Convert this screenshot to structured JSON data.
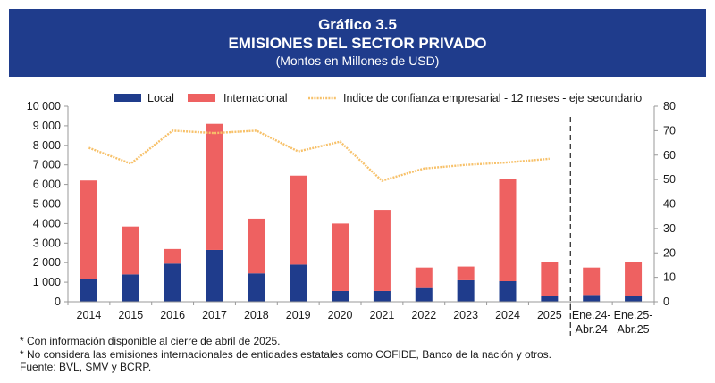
{
  "header": {
    "line1": "Gráfico 3.5",
    "line2": "EMISIONES DEL SECTOR PRIVADO",
    "line3": "(Montos en Millones de USD)"
  },
  "colors": {
    "header_bg": "#1f3c8c",
    "local": "#1f3c8c",
    "internacional": "#ee6161",
    "index": "#f7c16a",
    "divider": "#333333"
  },
  "chart_data": {
    "type": "bar",
    "stacked": true,
    "categories": [
      "2014",
      "2015",
      "2016",
      "2017",
      "2018",
      "2019",
      "2020",
      "2021",
      "2022",
      "2023",
      "2024",
      "2025",
      "Ene.24-\nAbr.24",
      "Ene.25-\nAbr.25"
    ],
    "series": [
      {
        "name": "Local",
        "values": [
          1150,
          1400,
          1950,
          2650,
          1450,
          1900,
          550,
          550,
          700,
          1100,
          1050,
          300,
          350,
          300
        ]
      },
      {
        "name": "Internacional",
        "values": [
          5050,
          2450,
          750,
          6450,
          2800,
          4550,
          3450,
          4150,
          1050,
          700,
          5250,
          1750,
          1400,
          1750
        ]
      }
    ],
    "secondary_line": {
      "name": "Indice de confianza empresarial - 12 meses - eje secundario",
      "x": [
        "2014",
        "2015",
        "2016",
        "2017",
        "2018",
        "2019",
        "2020",
        "2021",
        "2022",
        "2023",
        "2024",
        "2025"
      ],
      "values": [
        63,
        56.5,
        70,
        69,
        70,
        61.5,
        65.5,
        49.5,
        54.5,
        56,
        57,
        58.5
      ]
    },
    "ylim": [
      0,
      10000
    ],
    "yticks": [
      "0",
      "1 000",
      "2 000",
      "3 000",
      "4 000",
      "5 000",
      "6 000",
      "7 000",
      "8 000",
      "9 000",
      "10 000"
    ],
    "y2lim": [
      0,
      80
    ],
    "y2ticks": [
      "0",
      "10",
      "20",
      "30",
      "40",
      "50",
      "60",
      "70",
      "80"
    ],
    "legend_position": "top",
    "divider_after_index": 11,
    "grid": false
  },
  "notes": {
    "line1": "* Con información disponible al cierre de abril de 2025.",
    "line2": "* No considera las emisiones internacionales de entidades estatales como COFIDE, Banco de la nación y otros.",
    "line3": "Fuente: BVL, SMV y BCRP."
  }
}
